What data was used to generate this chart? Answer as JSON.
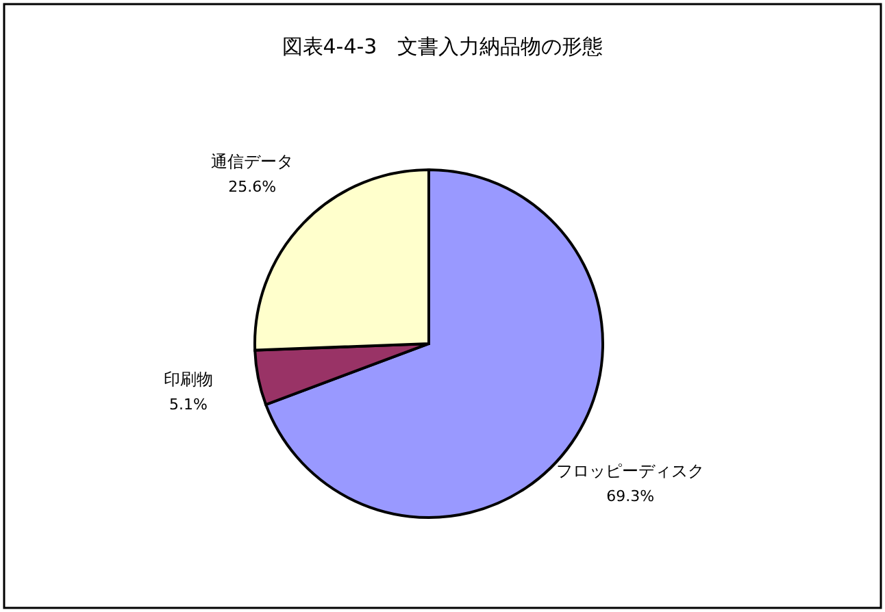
{
  "chart_data": {
    "type": "pie",
    "title": "図表4-4-3　文書入力納品物の形態",
    "categories": [
      "フロッピーディスク",
      "印刷物",
      "通信データ"
    ],
    "values": [
      69.3,
      5.1,
      25.6
    ],
    "colors": [
      "#9999ff",
      "#993366",
      "#ffffcc"
    ],
    "value_labels": [
      "69.3%",
      "5.1%",
      "25.6%"
    ]
  }
}
